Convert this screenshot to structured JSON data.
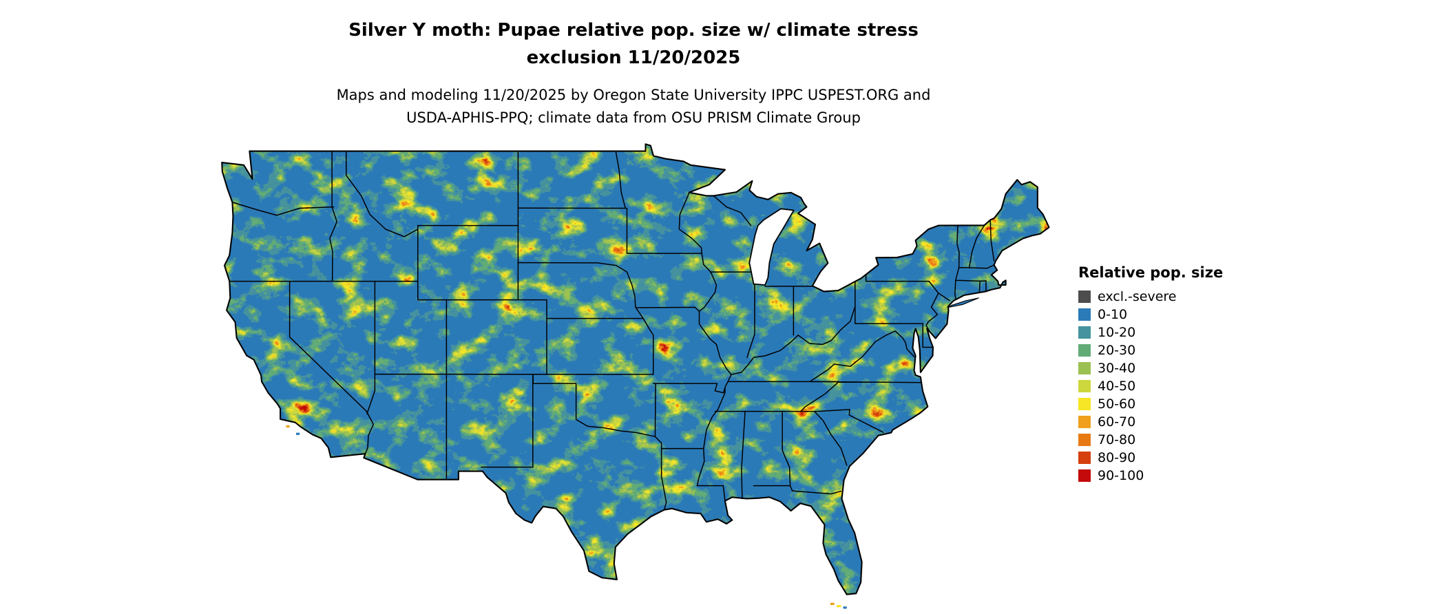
{
  "page": {
    "background": "#ffffff"
  },
  "title": {
    "line1": "Silver Y moth: Pupae relative pop. size w/ climate stress",
    "line2": "exclusion 11/20/2025"
  },
  "subtitle": {
    "line1": "Maps and modeling 11/20/2025 by Oregon State University IPPC USPEST.ORG and",
    "line2": "USDA-APHIS-PPQ; climate data from OSU PRISM Climate Group"
  },
  "map": {
    "description": "Contiguous United States raster map of relative population size",
    "base_color": "#2b7bb9",
    "border_color": "#000000",
    "water_color": "#ffffff"
  },
  "legend": {
    "title": "Relative pop. size",
    "entries": [
      {
        "label": "excl.-severe",
        "color": "#4d4d4d"
      },
      {
        "label": "0-10",
        "color": "#2b7bb9"
      },
      {
        "label": "10-20",
        "color": "#45939e"
      },
      {
        "label": "20-30",
        "color": "#62ab77"
      },
      {
        "label": "30-40",
        "color": "#9cc153"
      },
      {
        "label": "40-50",
        "color": "#cdd83e"
      },
      {
        "label": "50-60",
        "color": "#f6e626"
      },
      {
        "label": "60-70",
        "color": "#f0a01e"
      },
      {
        "label": "70-80",
        "color": "#e87a14"
      },
      {
        "label": "80-90",
        "color": "#d63f0e"
      },
      {
        "label": "90-100",
        "color": "#c40a0a"
      }
    ]
  }
}
